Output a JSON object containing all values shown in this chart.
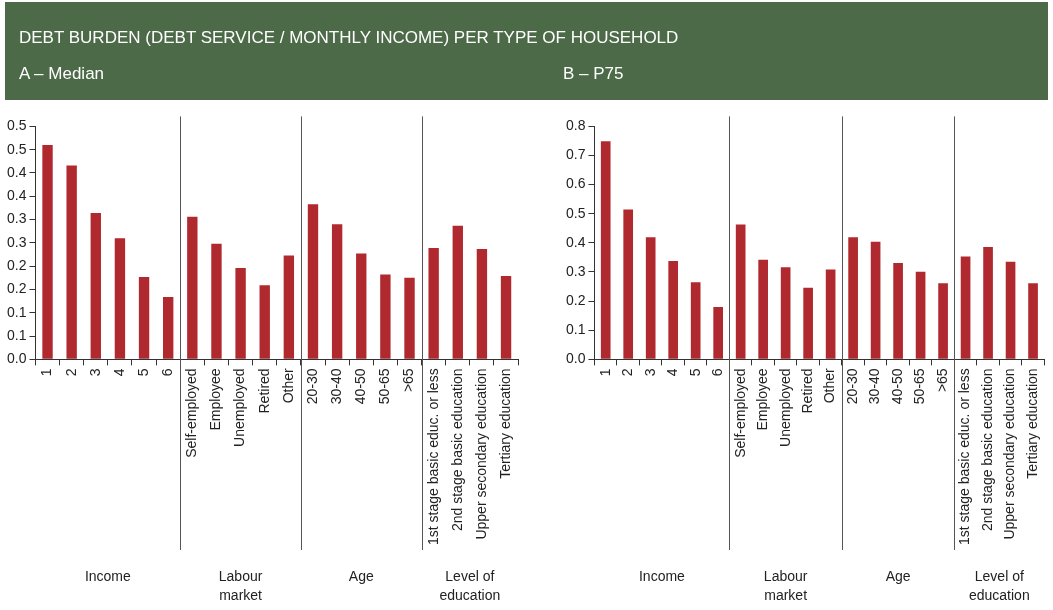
{
  "chart_data": [
    {
      "type": "bar",
      "title": "DEBT BURDEN (DEBT SERVICE / MONTHLY INCOME) PER TYPE OF HOUSEHOLD",
      "subtitle": "A – Median",
      "categories": [
        "1",
        "2",
        "3",
        "4",
        "5",
        "6",
        "Self-employed",
        "Employee",
        "Unemployed",
        "Retired",
        "Other",
        "20-30",
        "30-40",
        "40-50",
        "50-65",
        ">65",
        "1st stage basic educ. or less",
        "2nd stage basic education",
        "Upper secondary education",
        "Tertiary education"
      ],
      "values": [
        0.46,
        0.416,
        0.314,
        0.26,
        0.177,
        0.134,
        0.306,
        0.248,
        0.196,
        0.159,
        0.223,
        0.333,
        0.29,
        0.227,
        0.182,
        0.175,
        0.239,
        0.287,
        0.237,
        0.179
      ],
      "color": "#b0292f",
      "ylim": [
        0,
        0.5
      ],
      "yticks": [
        {
          "value": 0,
          "label": "0.0"
        },
        {
          "value": 0.05,
          "label": "0.1"
        },
        {
          "value": 0.1,
          "label": "0.1"
        },
        {
          "value": 0.15,
          "label": "0.2"
        },
        {
          "value": 0.2,
          "label": "0.2"
        },
        {
          "value": 0.25,
          "label": "0.3"
        },
        {
          "value": 0.3,
          "label": "0.3"
        },
        {
          "value": 0.35,
          "label": "0.4"
        },
        {
          "value": 0.4,
          "label": "0.4"
        },
        {
          "value": 0.45,
          "label": "0.5"
        },
        {
          "value": 0.5,
          "label": "0.5"
        }
      ],
      "annotations": [
        "Income",
        "Labour market",
        "Age",
        "Level of education"
      ],
      "grid": false,
      "legend": false
    },
    {
      "type": "bar",
      "subtitle": "B – P75",
      "categories": [
        "1",
        "2",
        "3",
        "4",
        "5",
        "6",
        "Self-employed",
        "Employee",
        "Unemployed",
        "Retired",
        "Other",
        "20-30",
        "30-40",
        "40-50",
        "50-65",
        ">65",
        "1st stage basic educ. or less",
        "2nd stage basic education",
        "Upper secondary education",
        "Tertiary education"
      ],
      "values": [
        0.749,
        0.515,
        0.419,
        0.338,
        0.265,
        0.18,
        0.463,
        0.342,
        0.316,
        0.246,
        0.309,
        0.419,
        0.404,
        0.331,
        0.301,
        0.261,
        0.353,
        0.386,
        0.335,
        0.261
      ],
      "color": "#b0292f",
      "ylim": [
        0,
        0.8
      ],
      "yticks": [
        {
          "value": 0,
          "label": "0.0"
        },
        0.1,
        0.2,
        0.3,
        0.4,
        0.5,
        0.6,
        0.7,
        0.8
      ],
      "annotations": [
        "Income",
        "Labour market",
        "Age",
        "Level of education"
      ],
      "grid": false,
      "legend": false
    }
  ]
}
